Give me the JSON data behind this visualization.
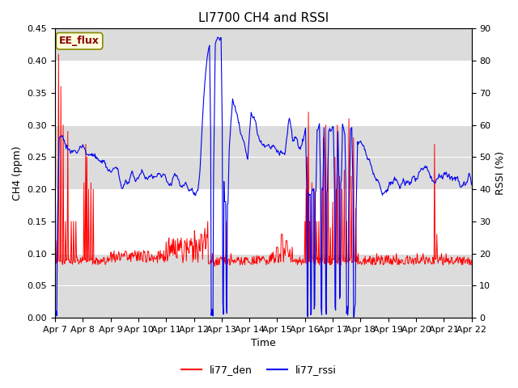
{
  "title": "LI7700 CH4 and RSSI",
  "xlabel": "Time",
  "ylabel_left": "CH4 (ppm)",
  "ylabel_right": "RSSI (%)",
  "ylim_left": [
    0.0,
    0.45
  ],
  "ylim_right": [
    0,
    90
  ],
  "yticks_left": [
    0.0,
    0.05,
    0.1,
    0.15,
    0.2,
    0.25,
    0.3,
    0.35,
    0.4,
    0.45
  ],
  "yticks_right": [
    0,
    10,
    20,
    30,
    40,
    50,
    60,
    70,
    80,
    90
  ],
  "xtick_labels": [
    "Apr 7",
    "Apr 8",
    "Apr 9",
    "Apr 10",
    "Apr 11",
    "Apr 12",
    "Apr 13",
    "Apr 14",
    "Apr 15",
    "Apr 16",
    "Apr 17",
    "Apr 18",
    "Apr 19",
    "Apr 20",
    "Apr 21",
    "Apr 22"
  ],
  "text_box_label": "EE_flux",
  "legend_labels": [
    "li77_den",
    "li77_rssi"
  ],
  "line_color_red": "#FF0000",
  "line_color_blue": "#0000EE",
  "bg_color": "#FFFFFF",
  "band_color": "#DCDCDC",
  "title_fontsize": 11,
  "label_fontsize": 9,
  "tick_fontsize": 8
}
